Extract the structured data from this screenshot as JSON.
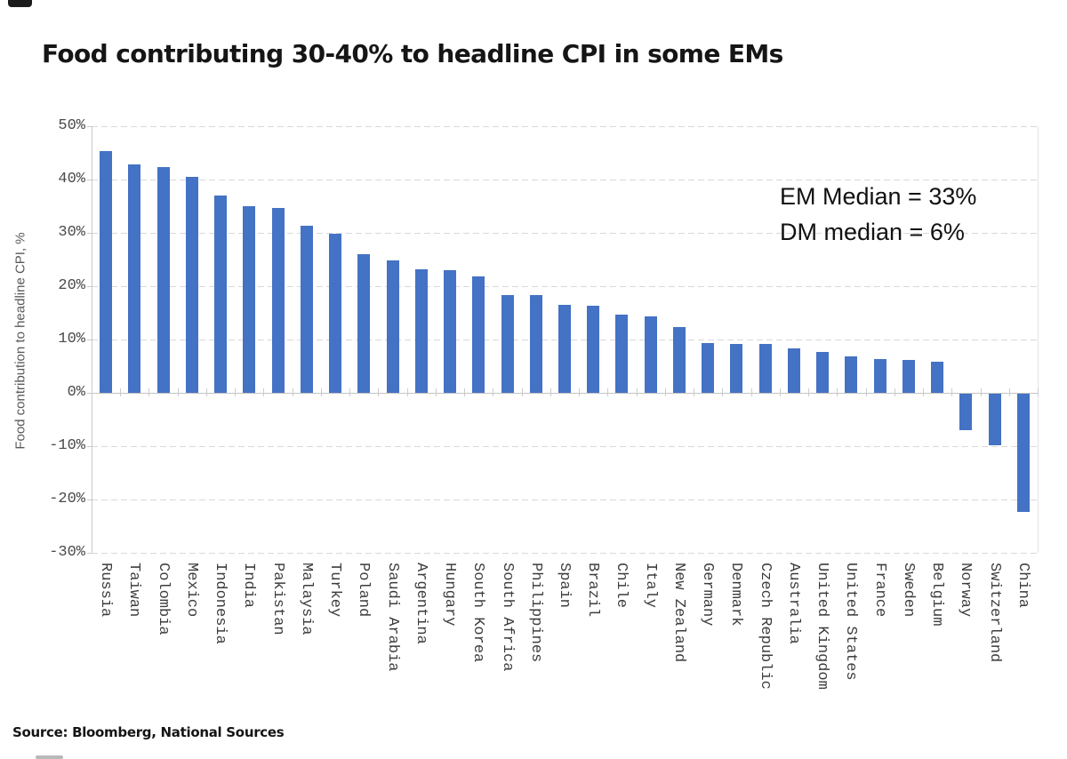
{
  "title": "Food contributing 30-40% to headline CPI in some EMs",
  "source": "Source: Bloomberg, National Sources",
  "annotation": {
    "em_median": "EM Median = 33%",
    "dm_median": "DM median = 6%"
  },
  "colors": {
    "bar": "#4472C4",
    "gridline": "#d9d9d9",
    "axis": "#c8c8c8",
    "text": "#151515",
    "axis_text": "#4a4a4a"
  },
  "chart_data": {
    "type": "bar",
    "title": "Food contributing 30-40% to headline CPI in some EMs",
    "xlabel": "",
    "ylabel": "Food contribution to headline CPI, %",
    "ylim": [
      -30,
      50
    ],
    "yticks": [
      50,
      40,
      30,
      20,
      10,
      0,
      -10,
      -20,
      -30
    ],
    "ytick_format": "percent",
    "grid": "horizontal-dashed",
    "legend": "none",
    "bar_color": "#4472C4",
    "annotations": [
      "EM Median = 33%",
      "DM median = 6%"
    ],
    "categories": [
      "Russia",
      "Taiwan",
      "Colombia",
      "Mexico",
      "Indonesia",
      "India",
      "Pakistan",
      "Malaysia",
      "Turkey",
      "Poland",
      "Saudi Arabia",
      "Argentina",
      "Hungary",
      "South Korea",
      "South Africa",
      "Philippines",
      "Spain",
      "Brazil",
      "Chile",
      "Italy",
      "New Zealand",
      "Germany",
      "Denmark",
      "Czech Republic",
      "Australia",
      "United Kingdom",
      "United States",
      "France",
      "Sweden",
      "Belgium",
      "Norway",
      "Switzerland",
      "China"
    ],
    "values": [
      45.3,
      42.8,
      42.4,
      40.5,
      37.0,
      35.0,
      34.7,
      31.4,
      29.9,
      26.0,
      24.9,
      23.2,
      23.0,
      21.8,
      18.4,
      18.3,
      16.5,
      16.4,
      14.7,
      14.4,
      12.4,
      9.4,
      9.1,
      9.1,
      8.4,
      7.6,
      6.9,
      6.3,
      6.2,
      5.9,
      -6.8,
      -9.7,
      -22.1
    ]
  }
}
